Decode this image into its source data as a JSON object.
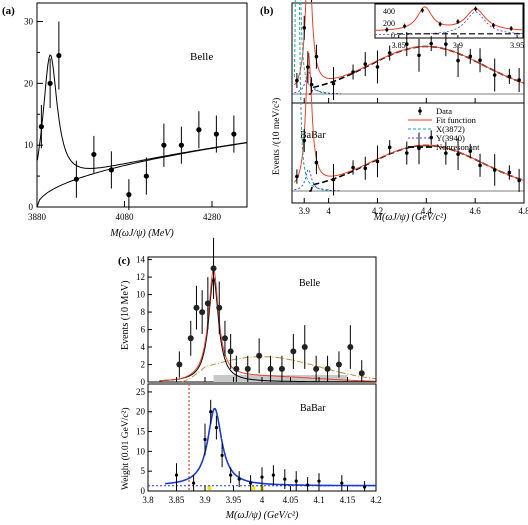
{
  "chart_data": [
    {
      "panel": "(a)",
      "type": "scatter",
      "label": "Belle",
      "xlabel": "M(ωJ/ψ) (MeV)",
      "xlim": [
        3880,
        4360
      ],
      "ylim": [
        0,
        33
      ],
      "xticks": [
        3880,
        4080,
        4280
      ],
      "yticks": [
        0,
        10,
        20,
        30
      ],
      "points": [
        {
          "x": 3890,
          "y": 13,
          "e": 3.5
        },
        {
          "x": 3910,
          "y": 20,
          "e": 4
        },
        {
          "x": 3930,
          "y": 24.5,
          "e": 5.5
        },
        {
          "x": 3970,
          "y": 4.5,
          "e": 3
        },
        {
          "x": 4010,
          "y": 8.5,
          "e": 3
        },
        {
          "x": 4050,
          "y": 6,
          "e": 3
        },
        {
          "x": 4090,
          "y": 2,
          "e": 2.5
        },
        {
          "x": 4130,
          "y": 5,
          "e": 3
        },
        {
          "x": 4170,
          "y": 10,
          "e": 3.5
        },
        {
          "x": 4210,
          "y": 10,
          "e": 3
        },
        {
          "x": 4250,
          "y": 12.5,
          "e": 3
        },
        {
          "x": 4290,
          "y": 11.8,
          "e": 3
        },
        {
          "x": 4330,
          "y": 11.8,
          "e": 3
        }
      ]
    },
    {
      "panel": "(b)",
      "type": "scatter",
      "ylabel": "Events /(10 meV/c²)",
      "xlabel": "M(ωJ/ψ) (GeV/c²)",
      "xlim": [
        3.85,
        4.8
      ],
      "xticks": [
        "3.9",
        "4",
        "4.2",
        "4.4",
        "4.6",
        "4.8"
      ],
      "top_label": "",
      "bottom_label": "BaBar",
      "inset_xticks": [
        "3.85",
        "3.9",
        "3.95"
      ],
      "inset_yticks": [
        "400",
        "200",
        "0"
      ],
      "legend": [
        "Data",
        "Fit function",
        "X(3872)",
        "Y(3940)",
        "Nonresonant"
      ]
    },
    {
      "panel": "(c)",
      "type": "scatter",
      "top": {
        "label": "Belle",
        "ylabel": "Events (10 MeV)",
        "ylim": [
          0,
          14
        ],
        "yticks": [
          0,
          2,
          4,
          6,
          8,
          10,
          12,
          14
        ]
      },
      "bottom": {
        "label": "BaBar",
        "ylabel": "Weight (0.01 GeV/c²)",
        "ylim": [
          0,
          27
        ],
        "yticks": [
          0,
          5,
          10,
          15,
          20,
          25
        ],
        "xlabel": "M(ωJ/ψ) (GeV/c²)",
        "xlim": [
          3.8,
          4.2
        ],
        "xticks": [
          "3.8",
          "3.85",
          "3.9",
          "3.95",
          "4",
          "4.05",
          "4.1",
          "4.15",
          "4.2"
        ]
      },
      "belle_points": [
        {
          "x": 3.855,
          "y": 2,
          "e": 1.5
        },
        {
          "x": 3.875,
          "y": 5,
          "e": 2
        },
        {
          "x": 3.885,
          "y": 8.5,
          "e": 2.5
        },
        {
          "x": 3.895,
          "y": 8,
          "e": 2.5
        },
        {
          "x": 3.905,
          "y": 9,
          "e": 3
        },
        {
          "x": 3.915,
          "y": 13,
          "e": 3.5
        },
        {
          "x": 3.925,
          "y": 8.5,
          "e": 3
        },
        {
          "x": 3.935,
          "y": 5,
          "e": 2
        },
        {
          "x": 3.945,
          "y": 3.5,
          "e": 2
        },
        {
          "x": 3.955,
          "y": 1.5,
          "e": 1.5
        },
        {
          "x": 3.975,
          "y": 1.5,
          "e": 1.5
        },
        {
          "x": 3.995,
          "y": 3,
          "e": 2
        },
        {
          "x": 4.015,
          "y": 1.5,
          "e": 1.5
        },
        {
          "x": 4.035,
          "y": 1.5,
          "e": 1.5
        },
        {
          "x": 4.055,
          "y": 3.5,
          "e": 2
        },
        {
          "x": 4.075,
          "y": 4,
          "e": 2.5
        },
        {
          "x": 4.095,
          "y": 1.5,
          "e": 1.5
        },
        {
          "x": 4.115,
          "y": 1.5,
          "e": 1.5
        },
        {
          "x": 4.135,
          "y": 2,
          "e": 1.5
        },
        {
          "x": 4.155,
          "y": 4,
          "e": 2.5
        },
        {
          "x": 4.175,
          "y": 1,
          "e": 1.5
        }
      ],
      "babar_points": [
        {
          "x": 3.85,
          "y": 4,
          "e": 3
        },
        {
          "x": 3.88,
          "y": 2,
          "e": 2
        },
        {
          "x": 3.9,
          "y": 13,
          "e": 4
        },
        {
          "x": 3.91,
          "y": 20,
          "e": 3
        },
        {
          "x": 3.92,
          "y": 16,
          "e": 3
        },
        {
          "x": 3.93,
          "y": 9,
          "e": 3
        },
        {
          "x": 3.945,
          "y": 4,
          "e": 2
        },
        {
          "x": 3.96,
          "y": 3,
          "e": 2
        },
        {
          "x": 3.98,
          "y": 2,
          "e": 2
        },
        {
          "x": 4.0,
          "y": 3.5,
          "e": 2.5
        },
        {
          "x": 4.02,
          "y": 4,
          "e": 2.5
        },
        {
          "x": 4.04,
          "y": 3,
          "e": 2.5
        },
        {
          "x": 4.06,
          "y": 2.5,
          "e": 2.5
        },
        {
          "x": 4.08,
          "y": 1.5,
          "e": 2
        },
        {
          "x": 4.1,
          "y": 2.5,
          "e": 2
        },
        {
          "x": 4.14,
          "y": 2,
          "e": 2
        },
        {
          "x": 4.18,
          "y": 1,
          "e": 1.5
        }
      ]
    }
  ]
}
